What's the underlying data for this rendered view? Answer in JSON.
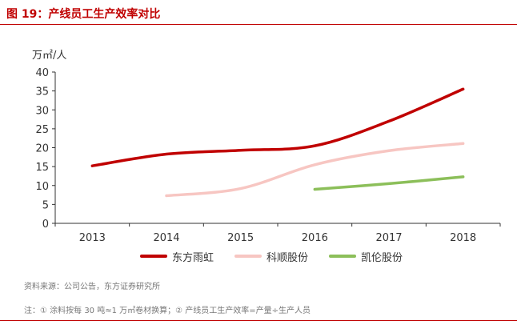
{
  "header": {
    "title": "图 19：产线员工生产效率对比"
  },
  "source": "资料来源：公司公告，东方证券研究所",
  "note": "注：① 涂料按每 30 吨≈1 万㎡卷材换算；② 产线员工生产效率=产量÷生产人员",
  "chart_data": {
    "type": "line",
    "ylabel": "万㎡/人",
    "categories": [
      "2013",
      "2014",
      "2015",
      "2016",
      "2017",
      "2018"
    ],
    "ylim": [
      0,
      40
    ],
    "yticks": [
      0,
      5,
      10,
      15,
      20,
      25,
      30,
      35,
      40
    ],
    "grid": false,
    "legend_position": "bottom",
    "series": [
      {
        "name": "东方雨虹",
        "color": "#c00000",
        "values": [
          15.2,
          18.3,
          19.3,
          20.5,
          27.0,
          35.5
        ]
      },
      {
        "name": "科顺股份",
        "color": "#f7c6c2",
        "values": [
          null,
          7.3,
          9.2,
          15.5,
          19.2,
          21.1
        ]
      },
      {
        "name": "凯伦股份",
        "color": "#8cbf5a",
        "values": [
          null,
          null,
          null,
          9.0,
          10.5,
          12.3
        ]
      }
    ]
  }
}
